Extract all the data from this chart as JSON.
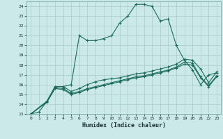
{
  "title": "",
  "xlabel": "Humidex (Indice chaleur)",
  "background_color": "#cce9e9",
  "grid_color": "#aacccc",
  "line_color": "#1a6b5a",
  "xlim": [
    -0.5,
    23.5
  ],
  "ylim": [
    13,
    24.5
  ],
  "xticks": [
    0,
    1,
    2,
    3,
    4,
    5,
    6,
    7,
    8,
    9,
    10,
    11,
    12,
    13,
    14,
    15,
    16,
    17,
    18,
    19,
    20,
    21,
    22,
    23
  ],
  "yticks": [
    13,
    14,
    15,
    16,
    17,
    18,
    19,
    20,
    21,
    22,
    23,
    24
  ],
  "line1_x": [
    0,
    1,
    2,
    3,
    4,
    5,
    6,
    7,
    8,
    9,
    10,
    11,
    12,
    13,
    14,
    15,
    16,
    17,
    18,
    19,
    20,
    21,
    22,
    23
  ],
  "line1_y": [
    13.0,
    13.2,
    14.3,
    15.8,
    15.8,
    16.0,
    21.0,
    20.5,
    20.5,
    20.7,
    21.0,
    22.3,
    23.0,
    24.2,
    24.2,
    24.0,
    22.5,
    22.7,
    20.0,
    18.5,
    17.5,
    16.0,
    17.0,
    17.2
  ],
  "line2_x": [
    0,
    2,
    3,
    4,
    5,
    6,
    7,
    8,
    9,
    10,
    11,
    12,
    13,
    14,
    15,
    16,
    17,
    18,
    19,
    20,
    21,
    22,
    23
  ],
  "line2_y": [
    13.0,
    14.3,
    15.8,
    15.8,
    15.3,
    15.6,
    16.0,
    16.3,
    16.5,
    16.6,
    16.7,
    16.9,
    17.1,
    17.2,
    17.4,
    17.6,
    17.8,
    18.1,
    18.6,
    18.5,
    17.6,
    16.2,
    17.3
  ],
  "line3_x": [
    0,
    2,
    3,
    4,
    5,
    6,
    7,
    8,
    9,
    10,
    11,
    12,
    13,
    14,
    15,
    16,
    17,
    18,
    19,
    20,
    21,
    22,
    23
  ],
  "line3_y": [
    13.0,
    14.3,
    15.7,
    15.6,
    15.1,
    15.3,
    15.6,
    15.8,
    16.0,
    16.2,
    16.4,
    16.6,
    16.8,
    16.9,
    17.1,
    17.3,
    17.5,
    17.8,
    18.3,
    18.2,
    16.8,
    15.9,
    16.9
  ],
  "line4_x": [
    0,
    2,
    3,
    4,
    5,
    6,
    7,
    8,
    9,
    10,
    11,
    12,
    13,
    14,
    15,
    16,
    17,
    18,
    19,
    20,
    21,
    22,
    23
  ],
  "line4_y": [
    13.0,
    14.2,
    15.6,
    15.5,
    15.0,
    15.2,
    15.5,
    15.7,
    15.9,
    16.1,
    16.3,
    16.5,
    16.7,
    16.8,
    17.0,
    17.2,
    17.4,
    17.7,
    18.1,
    18.0,
    16.7,
    15.8,
    16.8
  ]
}
